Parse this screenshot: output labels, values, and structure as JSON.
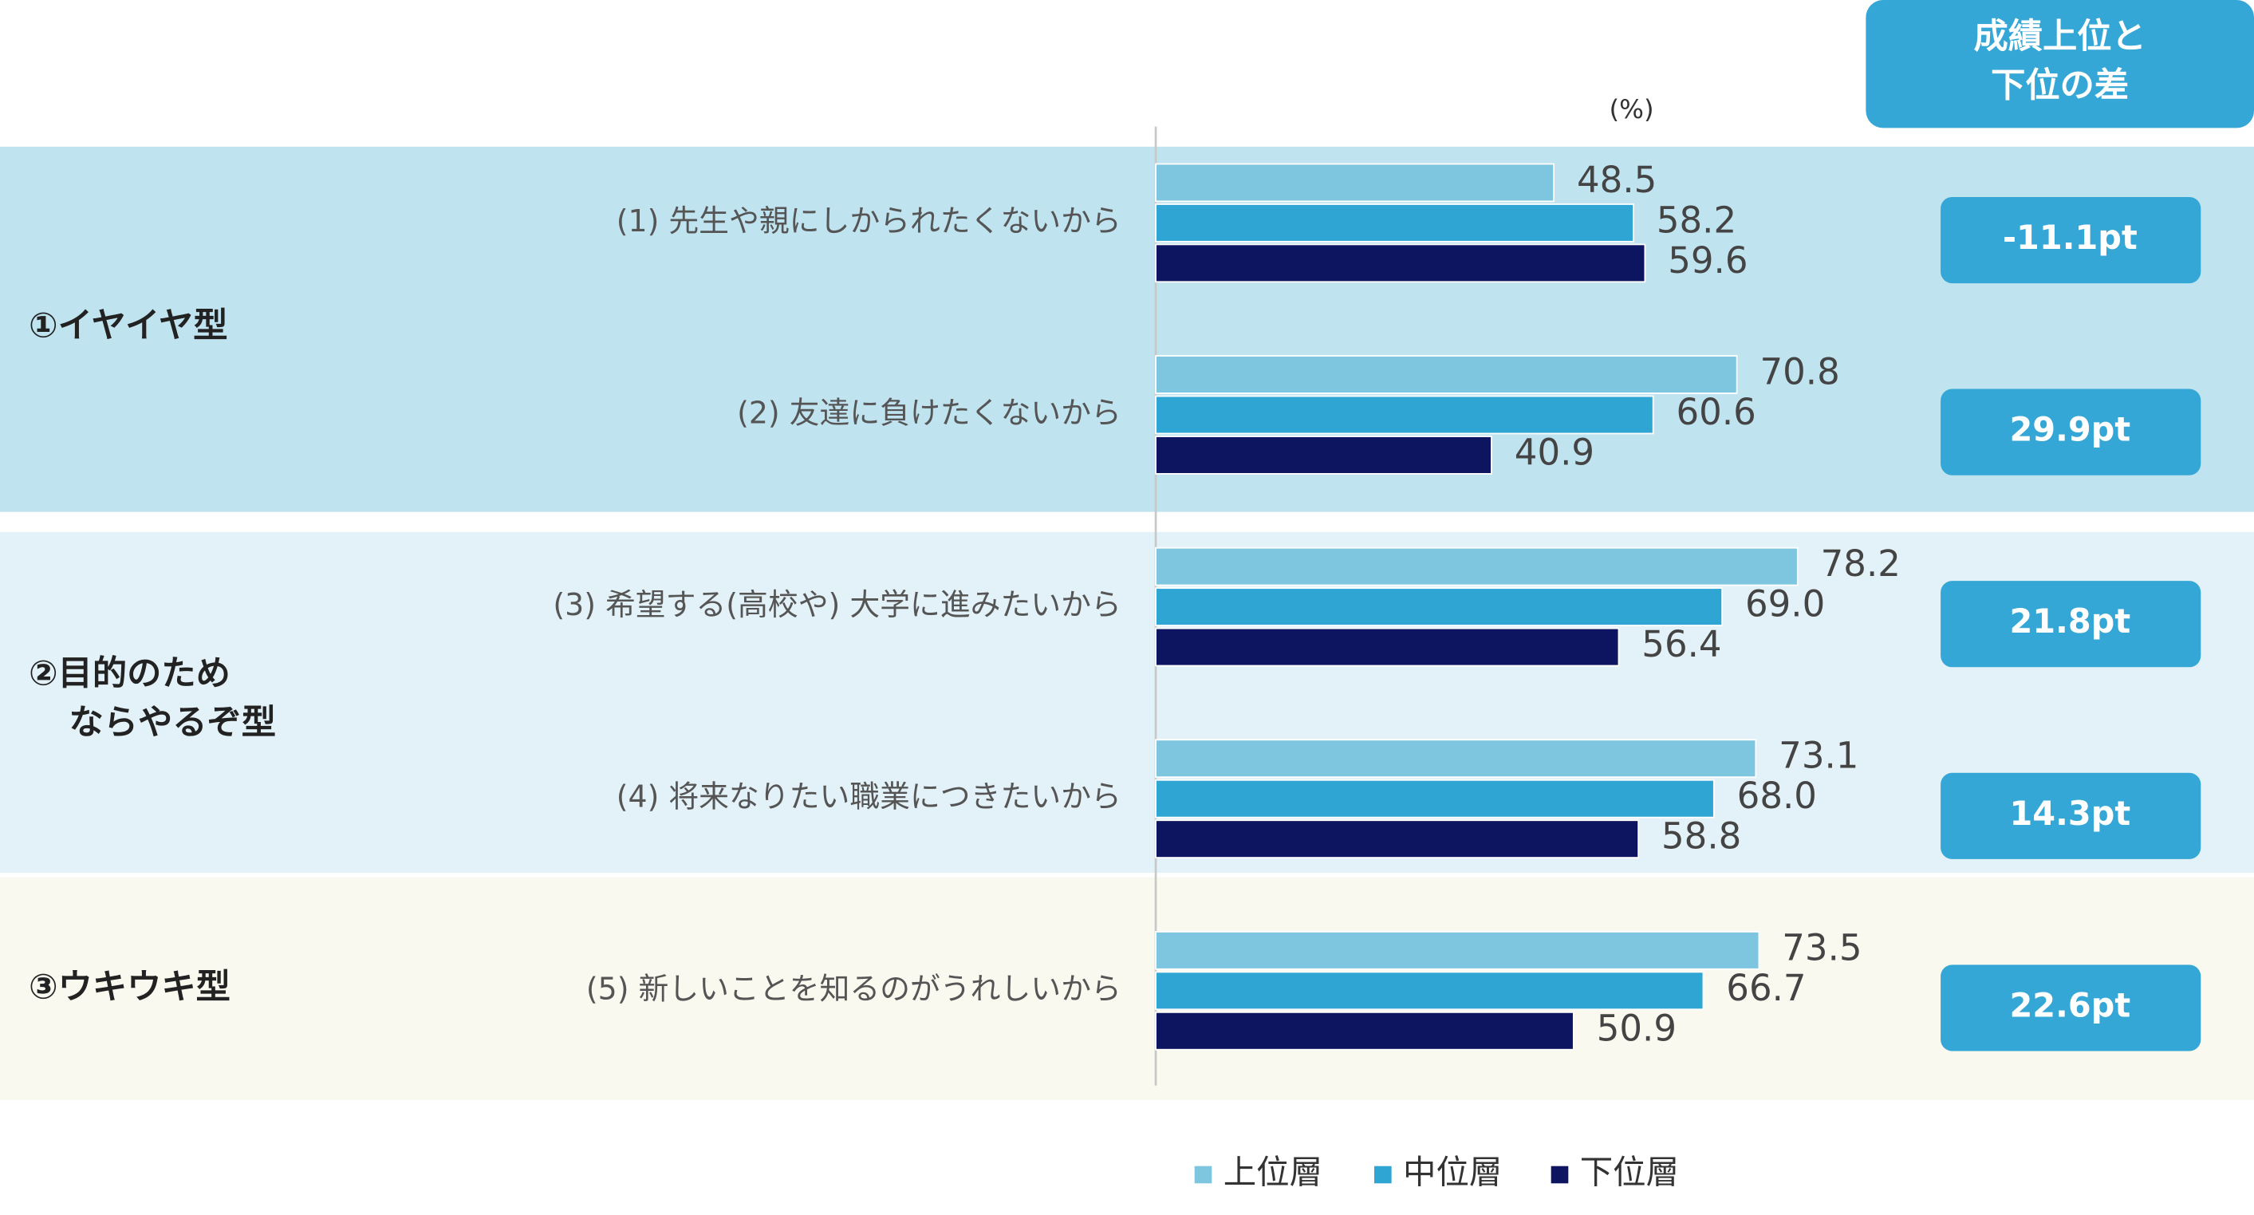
{
  "chart_data": {
    "type": "hbar",
    "unit_label": "(%)",
    "categories": [
      "(1) 先生や親にしかられたくないから",
      "(2) 友達に負けたくないから",
      "(3) 希望する(高校や) 大学に進みたいから",
      "(4) 将来なりたい職業につきたいから",
      "(5) 新しいことを知るのがうれしいから"
    ],
    "groups": [
      {
        "label": [
          "①イヤイヤ型"
        ],
        "color": "#c0e3f0"
      },
      {
        "label": [
          "②目的のため",
          "ならやるぞ型"
        ],
        "color": "#e3f2f8"
      },
      {
        "label": [
          "③ウキウキ型"
        ],
        "color": "#f9f9f0"
      }
    ],
    "series": [
      {
        "name": "上位層",
        "color": "#7ec6e0",
        "values": [
          48.5,
          70.8,
          78.2,
          73.1,
          73.5
        ],
        "value_labels": [
          "48.5",
          "70.8",
          "78.2",
          "73.1",
          "73.5"
        ]
      },
      {
        "name": "中位層",
        "color": "#2fa5d3",
        "values": [
          58.2,
          60.6,
          69.0,
          68.0,
          66.7
        ],
        "value_labels": [
          "58.2",
          "60.6",
          "69.0",
          "68.0",
          "66.7"
        ]
      },
      {
        "name": "下位層",
        "color": "#0d1560",
        "values": [
          59.6,
          40.9,
          56.4,
          58.8,
          50.9
        ],
        "value_labels": [
          "59.6",
          "40.9",
          "56.4",
          "58.8",
          "50.9"
        ]
      }
    ],
    "xlim": [
      0,
      100
    ],
    "difference": {
      "title": [
        "成績上位と",
        "下位の差"
      ],
      "color": "#35a7d6",
      "values": [
        -11.1,
        29.9,
        21.8,
        14.3,
        22.6
      ],
      "value_labels": [
        "-11.1pt",
        "29.9pt",
        "21.8pt",
        "14.3pt",
        "22.6pt"
      ]
    }
  }
}
